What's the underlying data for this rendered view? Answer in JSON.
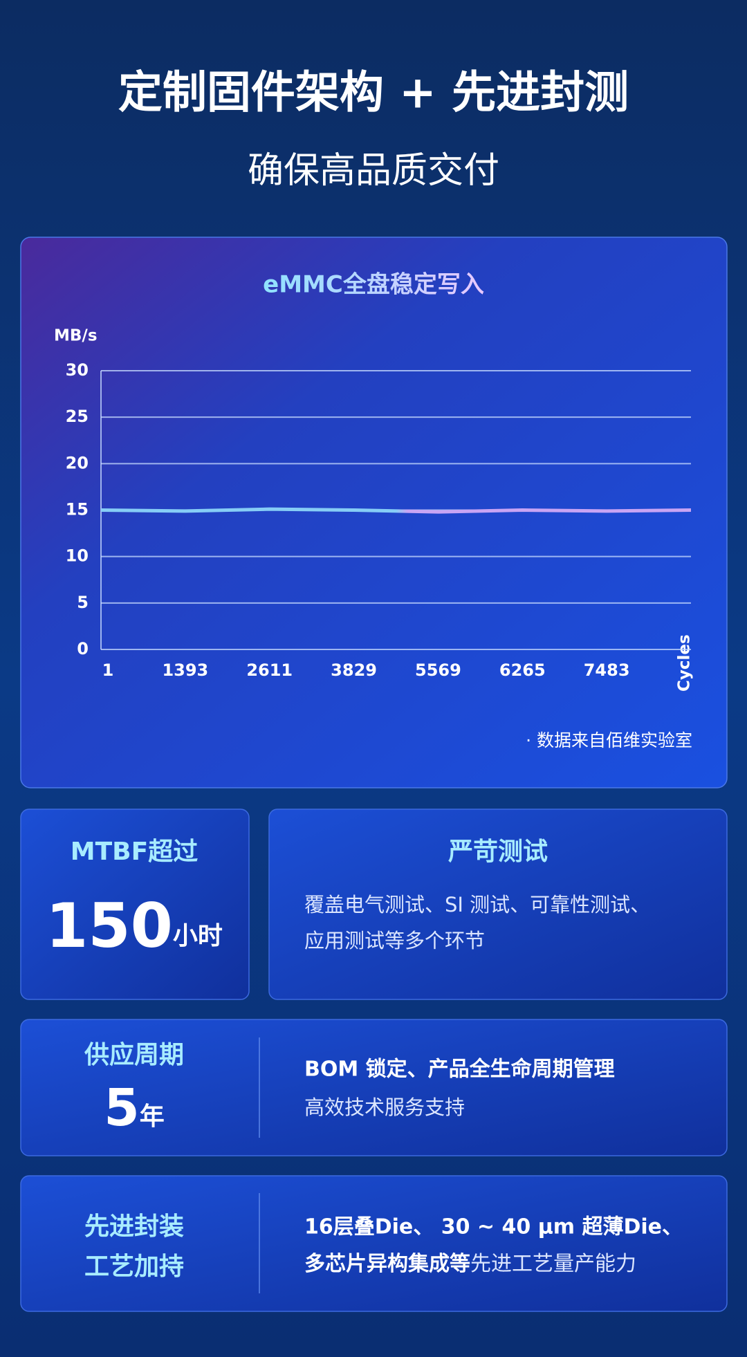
{
  "header": {
    "title": "定制固件架构 + 先进封测",
    "subtitle": "确保高品质交付"
  },
  "chart_data": {
    "type": "line",
    "title": "eMMC全盘稳定写入",
    "y_label": "MB/s",
    "x_label": "Cycles",
    "categories": [
      "1",
      "1393",
      "2611",
      "3829",
      "5569",
      "6265",
      "7483",
      null
    ],
    "series": [
      {
        "name": null,
        "colors": [
          "#86cdf6",
          "#c8a4f4"
        ],
        "values": [
          15.0,
          14.9,
          15.1,
          15.0,
          14.8,
          15.0,
          14.9,
          15.0
        ]
      }
    ],
    "ylim": [
      0,
      30
    ],
    "yticks": [
      0,
      5,
      10,
      15,
      20,
      25,
      30
    ],
    "grid": true,
    "source": "· 数据来自佰维实验室"
  },
  "cards": [
    {
      "title": "MTBF超过",
      "value": "150",
      "unit": "小时"
    },
    {
      "title": "严苛测试",
      "lines": [
        "覆盖电气测试、SI 测试、可靠性测试、",
        "应用测试等多个环节"
      ]
    },
    {
      "title": "供应周期",
      "value": "5",
      "unit": "年",
      "lines": [
        "BOM 锁定、产品全生命周期管理",
        "高效技术服务支持"
      ]
    },
    {
      "title_lines": [
        "先进封装",
        "工艺加持"
      ],
      "lines": [
        "16层叠Die、 30 ~ 40 μm 超薄Die、"
      ],
      "line2_bold": "多芯片异构集成等",
      "line2_rest": "先进工艺量产能力"
    }
  ]
}
